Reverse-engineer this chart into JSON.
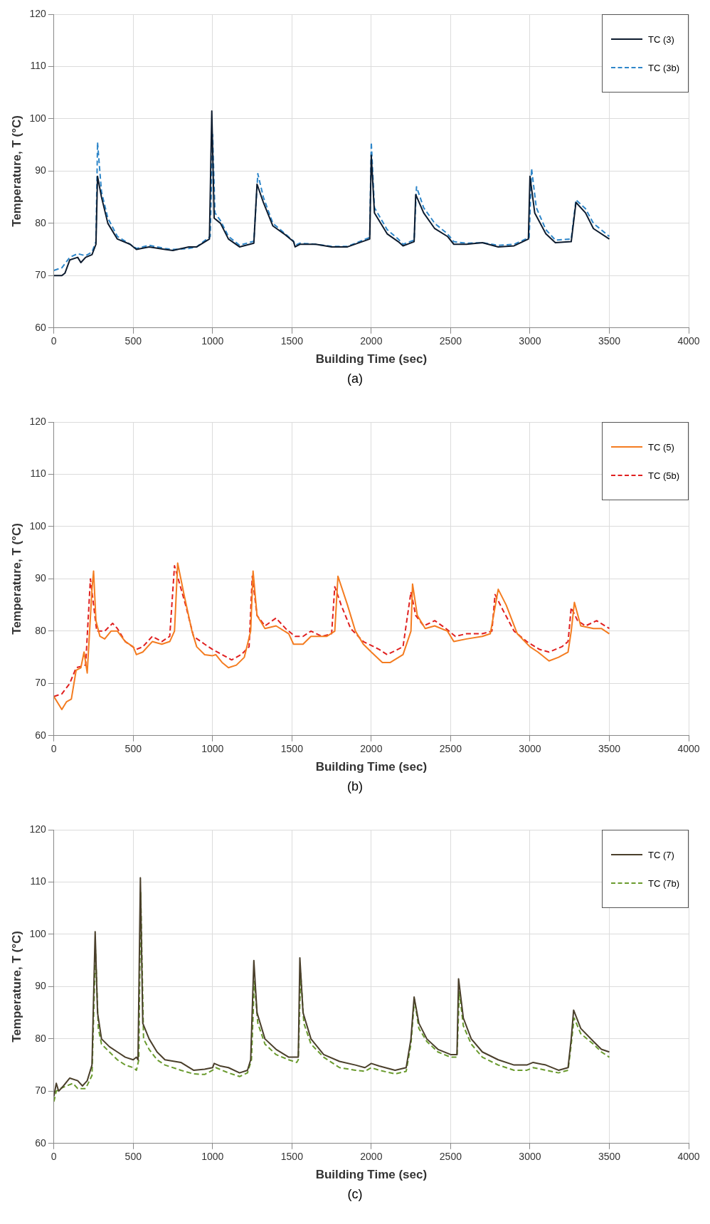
{
  "chart_data": [
    {
      "type": "line",
      "xlabel": "Building Time (sec)",
      "ylabel": "Temperature, T (°C)",
      "xlim": [
        0,
        4000
      ],
      "xticks": [
        0,
        500,
        1000,
        1500,
        2000,
        2500,
        3000,
        3500,
        4000
      ],
      "ylim": [
        60,
        120
      ],
      "yticks": [
        60,
        70,
        80,
        90,
        100,
        110,
        120
      ],
      "grid": true,
      "legend": "top right",
      "annotations": [
        "(a)"
      ],
      "series": [
        {
          "name": "TC (3)",
          "color": "#0d1b2e",
          "line_style": "solid",
          "x": [
            0,
            50,
            70,
            100,
            150,
            170,
            200,
            240,
            265,
            275,
            300,
            340,
            400,
            480,
            520,
            600,
            700,
            750,
            850,
            900,
            980,
            995,
            1010,
            1050,
            1100,
            1170,
            1260,
            1280,
            1320,
            1380,
            1450,
            1510,
            1520,
            1550,
            1650,
            1750,
            1850,
            1990,
            2000,
            2020,
            2100,
            2170,
            2200,
            2270,
            2280,
            2330,
            2400,
            2480,
            2520,
            2600,
            2700,
            2800,
            2900,
            2990,
            3000,
            3030,
            3100,
            3160,
            3260,
            3290,
            3350,
            3400,
            3500
          ],
          "values": [
            70,
            70,
            70.5,
            73,
            73.5,
            72.5,
            73.5,
            74,
            76,
            89,
            85,
            80,
            77,
            76,
            75,
            75.5,
            75,
            74.8,
            75.5,
            75.5,
            77,
            101.5,
            81,
            80,
            77,
            75.5,
            76.2,
            87.5,
            84,
            79.5,
            78,
            76.5,
            75.5,
            76,
            76,
            75.5,
            75.5,
            77,
            93,
            82,
            78,
            76.5,
            75.7,
            76.5,
            85.5,
            82,
            79,
            77.5,
            76,
            76,
            76.3,
            75.5,
            75.7,
            77,
            89,
            82,
            78,
            76.3,
            76.5,
            84,
            82,
            79,
            77
          ]
        },
        {
          "name": "TC (3b)",
          "color": "#2e86c9",
          "line_style": "dashed",
          "x": [
            0,
            50,
            100,
            150,
            200,
            240,
            265,
            275,
            300,
            340,
            400,
            480,
            520,
            600,
            700,
            750,
            850,
            900,
            985,
            1000,
            1015,
            1050,
            1100,
            1170,
            1260,
            1285,
            1320,
            1380,
            1450,
            1510,
            1520,
            1550,
            1650,
            1750,
            1850,
            1990,
            2000,
            2020,
            2100,
            2170,
            2200,
            2270,
            2285,
            2330,
            2400,
            2480,
            2520,
            2600,
            2700,
            2800,
            2900,
            2995,
            3010,
            3040,
            3100,
            3160,
            3260,
            3290,
            3350,
            3400,
            3500
          ],
          "values": [
            71,
            71.5,
            73.5,
            74.2,
            73.8,
            74.5,
            76.5,
            95.5,
            86,
            81,
            77.5,
            76,
            75.2,
            75.8,
            75.2,
            75,
            75.2,
            75.5,
            77.5,
            97,
            82,
            80.5,
            77.5,
            75.8,
            76.6,
            89.5,
            85,
            80,
            78.2,
            76.6,
            75.8,
            76.2,
            76,
            75.6,
            75.6,
            77.3,
            95.5,
            83,
            78.8,
            77,
            76,
            76.8,
            87,
            83,
            80,
            78,
            76.5,
            76.2,
            76.3,
            75.8,
            76,
            77.3,
            90.5,
            83,
            78.8,
            76.8,
            77,
            84.5,
            82.8,
            80,
            77.5
          ]
        }
      ]
    },
    {
      "type": "line",
      "xlabel": "Building Time (sec)",
      "ylabel": "Temperature, T (°C)",
      "xlim": [
        0,
        4000
      ],
      "xticks": [
        0,
        500,
        1000,
        1500,
        2000,
        2500,
        3000,
        3500,
        4000
      ],
      "ylim": [
        60,
        120
      ],
      "yticks": [
        60,
        70,
        80,
        90,
        100,
        110,
        120
      ],
      "grid": true,
      "legend": "top right",
      "annotations": [
        "(b)"
      ],
      "series": [
        {
          "name": "TC (5)",
          "color": "#f47c20",
          "line_style": "solid",
          "x": [
            0,
            50,
            80,
            110,
            140,
            170,
            190,
            210,
            240,
            250,
            265,
            290,
            320,
            360,
            400,
            450,
            500,
            520,
            560,
            620,
            680,
            730,
            760,
            780,
            820,
            870,
            900,
            950,
            1000,
            1020,
            1060,
            1100,
            1150,
            1200,
            1240,
            1255,
            1280,
            1330,
            1400,
            1480,
            1510,
            1570,
            1620,
            1720,
            1770,
            1790,
            1850,
            1900,
            1950,
            2000,
            2070,
            2120,
            2200,
            2250,
            2260,
            2290,
            2340,
            2400,
            2480,
            2520,
            2600,
            2700,
            2750,
            2800,
            2850,
            2920,
            3000,
            3050,
            3120,
            3180,
            3240,
            3260,
            3280,
            3320,
            3400,
            3450,
            3500
          ],
          "values": [
            67.5,
            65,
            66.5,
            67,
            72.5,
            73,
            76,
            72,
            88,
            91.5,
            82,
            79,
            78.5,
            80,
            80,
            78,
            77,
            75.5,
            76,
            78,
            77.5,
            78,
            80,
            93,
            87,
            80,
            77,
            75.5,
            75.3,
            75.5,
            74,
            73,
            73.5,
            75,
            80,
            91.5,
            83,
            80.5,
            81,
            79.5,
            77.5,
            77.5,
            79,
            79,
            80,
            90.5,
            85,
            80,
            77.5,
            76,
            74,
            74,
            75.5,
            80,
            89,
            83,
            80.5,
            81,
            80,
            78,
            78.5,
            79,
            79.5,
            88,
            85,
            79.5,
            77,
            76,
            74.3,
            75,
            76,
            80,
            85.5,
            81,
            80.5,
            80.5,
            79.5
          ]
        },
        {
          "name": "TC (5b)",
          "color": "#e02020",
          "line_style": "dashed",
          "x": [
            0,
            50,
            100,
            140,
            200,
            230,
            250,
            270,
            320,
            370,
            400,
            450,
            520,
            560,
            620,
            680,
            730,
            760,
            830,
            880,
            950,
            1000,
            1060,
            1120,
            1180,
            1230,
            1250,
            1280,
            1330,
            1400,
            1460,
            1520,
            1570,
            1620,
            1690,
            1750,
            1770,
            1810,
            1870,
            1950,
            2050,
            2100,
            2200,
            2250,
            2280,
            2330,
            2400,
            2470,
            2530,
            2600,
            2700,
            2760,
            2780,
            2830,
            2900,
            2980,
            3060,
            3120,
            3200,
            3240,
            3260,
            3300,
            3350,
            3420,
            3500
          ],
          "values": [
            67.5,
            68,
            70,
            73,
            73.5,
            90,
            85,
            80,
            80,
            81.5,
            80.5,
            78,
            76.5,
            77,
            79,
            78,
            79,
            92.5,
            85,
            79,
            77.5,
            76.5,
            75.5,
            74.5,
            75.5,
            77,
            90.5,
            83,
            81,
            82.5,
            80.5,
            79,
            79,
            80,
            79,
            79.5,
            88.5,
            85,
            80.5,
            78,
            76.5,
            75.5,
            77,
            87.5,
            83,
            81,
            82,
            80.5,
            79,
            79.5,
            79.5,
            80,
            87,
            84,
            80,
            78,
            76.5,
            76,
            77,
            78,
            84.5,
            82,
            81,
            82,
            80.5
          ]
        }
      ]
    },
    {
      "type": "line",
      "xlabel": "Building Time (sec)",
      "ylabel": "Temperature, T (°C)",
      "xlim": [
        0,
        4000
      ],
      "xticks": [
        0,
        500,
        1000,
        1500,
        2000,
        2500,
        3000,
        3500,
        4000
      ],
      "ylim": [
        60,
        120
      ],
      "yticks": [
        60,
        70,
        80,
        90,
        100,
        110,
        120
      ],
      "grid": true,
      "legend": "top right",
      "annotations": [
        "(c)"
      ],
      "series": [
        {
          "name": "TC (7)",
          "color": "#4a3f2b",
          "line_style": "solid",
          "x": [
            0,
            15,
            30,
            60,
            100,
            150,
            180,
            210,
            240,
            260,
            275,
            300,
            350,
            400,
            450,
            500,
            520,
            530,
            545,
            560,
            600,
            650,
            700,
            800,
            880,
            950,
            1000,
            1010,
            1050,
            1100,
            1170,
            1220,
            1240,
            1260,
            1280,
            1330,
            1400,
            1480,
            1540,
            1550,
            1570,
            1620,
            1700,
            1800,
            1900,
            1960,
            2000,
            2050,
            2150,
            2220,
            2250,
            2270,
            2300,
            2350,
            2420,
            2500,
            2540,
            2550,
            2580,
            2630,
            2700,
            2800,
            2900,
            2980,
            3020,
            3100,
            3180,
            3240,
            3260,
            3275,
            3320,
            3400,
            3450,
            3500
          ],
          "values": [
            69,
            71.5,
            70,
            71,
            72.5,
            72,
            71,
            72,
            75,
            100.5,
            85,
            80,
            78.5,
            77.5,
            76.5,
            76,
            76.5,
            76,
            110.8,
            83,
            80,
            77.5,
            76,
            75.5,
            74,
            74.2,
            74.5,
            75.3,
            74.8,
            74.5,
            73.5,
            74,
            76,
            95,
            85,
            80,
            78,
            76.5,
            76.5,
            95.5,
            85,
            80,
            77,
            75.7,
            75,
            74.5,
            75.3,
            74.8,
            74,
            74.5,
            80,
            88,
            83,
            80,
            78,
            77,
            77,
            91.5,
            84,
            80,
            77.5,
            76,
            75,
            75,
            75.5,
            75,
            74,
            74.5,
            80,
            85.5,
            82,
            79.5,
            78,
            77.5
          ]
        },
        {
          "name": "TC (7b)",
          "color": "#6a9b2e",
          "line_style": "dashed",
          "x": [
            0,
            15,
            40,
            80,
            120,
            150,
            200,
            240,
            262,
            280,
            300,
            350,
            400,
            450,
            500,
            520,
            535,
            547,
            565,
            600,
            650,
            700,
            800,
            880,
            950,
            1000,
            1020,
            1060,
            1100,
            1170,
            1220,
            1245,
            1263,
            1285,
            1330,
            1400,
            1480,
            1530,
            1540,
            1555,
            1575,
            1620,
            1700,
            1800,
            1900,
            1960,
            2000,
            2050,
            2150,
            2220,
            2250,
            2272,
            2300,
            2350,
            2420,
            2500,
            2540,
            2555,
            2580,
            2630,
            2700,
            2800,
            2900,
            2980,
            3020,
            3100,
            3180,
            3240,
            3260,
            3278,
            3320,
            3400,
            3450,
            3500
          ],
          "values": [
            68,
            70,
            70.5,
            71,
            71.5,
            70.5,
            70.5,
            73,
            97,
            82,
            79,
            77.5,
            76,
            75,
            74.5,
            74,
            76,
            108,
            80,
            78,
            76,
            75,
            74,
            73.3,
            73.2,
            74,
            74.5,
            74,
            73.5,
            72.8,
            73.5,
            76,
            91,
            83,
            79,
            77,
            76,
            75.5,
            76,
            92.5,
            83,
            79,
            76.5,
            74.5,
            74,
            73.8,
            74.5,
            74,
            73.3,
            73.8,
            79,
            87.5,
            82,
            79.5,
            77.5,
            76.5,
            76.5,
            89,
            82.5,
            79,
            76.5,
            75,
            74,
            74,
            74.5,
            74,
            73.5,
            74,
            79,
            84,
            81,
            79,
            77.5,
            76.5
          ]
        }
      ]
    }
  ]
}
